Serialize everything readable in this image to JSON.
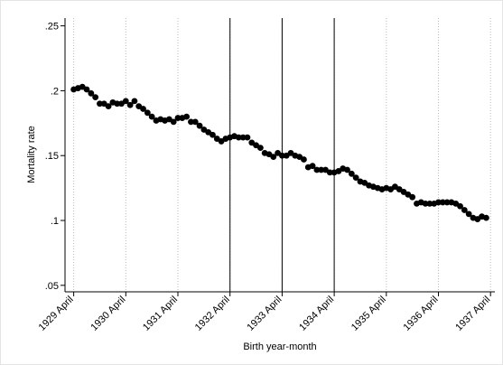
{
  "chart_data": {
    "type": "scatter",
    "y_label": "Mortality rate",
    "x_label": "Birth year-month",
    "x": [
      "1929-04",
      "1929-05",
      "1929-06",
      "1929-07",
      "1929-08",
      "1929-09",
      "1929-10",
      "1929-11",
      "1929-12",
      "1930-01",
      "1930-02",
      "1930-03",
      "1930-04",
      "1930-05",
      "1930-06",
      "1930-07",
      "1930-08",
      "1930-09",
      "1930-10",
      "1930-11",
      "1930-12",
      "1931-01",
      "1931-02",
      "1931-03",
      "1931-04",
      "1931-05",
      "1931-06",
      "1931-07",
      "1931-08",
      "1931-09",
      "1931-10",
      "1931-11",
      "1931-12",
      "1932-01",
      "1932-02",
      "1932-03",
      "1932-04",
      "1932-05",
      "1932-06",
      "1932-07",
      "1932-08",
      "1932-09",
      "1932-10",
      "1932-11",
      "1932-12",
      "1933-01",
      "1933-02",
      "1933-03",
      "1933-04",
      "1933-05",
      "1933-06",
      "1933-07",
      "1933-08",
      "1933-09",
      "1933-10",
      "1933-11",
      "1933-12",
      "1934-01",
      "1934-02",
      "1934-03",
      "1934-04",
      "1934-05",
      "1934-06",
      "1934-07",
      "1934-08",
      "1934-09",
      "1934-10",
      "1934-11",
      "1934-12",
      "1935-01",
      "1935-02",
      "1935-03",
      "1935-04",
      "1935-05",
      "1935-06",
      "1935-07",
      "1935-08",
      "1935-09",
      "1935-10",
      "1935-11",
      "1935-12",
      "1936-01",
      "1936-02",
      "1936-03",
      "1936-04",
      "1936-05",
      "1936-06",
      "1936-07",
      "1936-08",
      "1936-09",
      "1936-10",
      "1936-11",
      "1936-12",
      "1937-01",
      "1937-02",
      "1937-03"
    ],
    "values": [
      0.201,
      0.202,
      0.203,
      0.201,
      0.198,
      0.195,
      0.19,
      0.19,
      0.188,
      0.191,
      0.19,
      0.19,
      0.192,
      0.189,
      0.192,
      0.188,
      0.186,
      0.183,
      0.18,
      0.177,
      0.178,
      0.177,
      0.178,
      0.176,
      0.179,
      0.179,
      0.18,
      0.176,
      0.176,
      0.173,
      0.17,
      0.168,
      0.166,
      0.163,
      0.161,
      0.163,
      0.164,
      0.165,
      0.164,
      0.164,
      0.164,
      0.16,
      0.158,
      0.156,
      0.152,
      0.151,
      0.149,
      0.152,
      0.15,
      0.15,
      0.152,
      0.15,
      0.149,
      0.147,
      0.141,
      0.142,
      0.139,
      0.139,
      0.139,
      0.137,
      0.137,
      0.138,
      0.14,
      0.139,
      0.136,
      0.133,
      0.13,
      0.129,
      0.127,
      0.126,
      0.125,
      0.124,
      0.125,
      0.124,
      0.126,
      0.124,
      0.122,
      0.12,
      0.118,
      0.113,
      0.114,
      0.113,
      0.113,
      0.113,
      0.114,
      0.114,
      0.114,
      0.114,
      0.113,
      0.111,
      0.108,
      0.105,
      0.102,
      0.101,
      0.103,
      0.102
    ],
    "color": "#000000",
    "xlim": [
      "1929-02",
      "1937-05"
    ],
    "xticks": [
      {
        "value": "1929-04",
        "label": "1929 April"
      },
      {
        "value": "1930-04",
        "label": "1930 April"
      },
      {
        "value": "1931-04",
        "label": "1931 April"
      },
      {
        "value": "1932-04",
        "label": "1932 April"
      },
      {
        "value": "1933-04",
        "label": "1933 April"
      },
      {
        "value": "1934-04",
        "label": "1934 April"
      },
      {
        "value": "1935-04",
        "label": "1935 April"
      },
      {
        "value": "1936-04",
        "label": "1936 April"
      },
      {
        "value": "1937-04",
        "label": "1937 April"
      }
    ],
    "vlines": [
      "1932-04",
      "1933-04",
      "1934-04"
    ],
    "ylim": [
      0.045,
      0.256
    ],
    "yticks": [
      {
        "value": 0.05,
        "label": ".05"
      },
      {
        "value": 0.1,
        "label": ".1"
      },
      {
        "value": 0.15,
        "label": ".15"
      },
      {
        "value": 0.2,
        "label": ".2"
      },
      {
        "value": 0.25,
        "label": ".25"
      }
    ],
    "grid": true
  }
}
